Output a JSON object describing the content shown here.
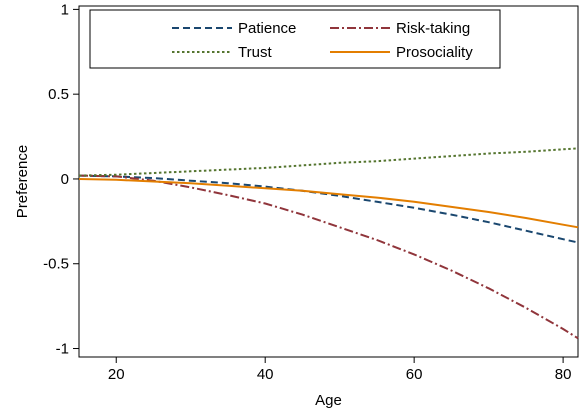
{
  "chart_data": {
    "type": "line",
    "xlabel": "Age",
    "ylabel": "Preference",
    "xlim": [
      15,
      82
    ],
    "ylim": [
      -1.05,
      1.02
    ],
    "xticks": [
      20,
      40,
      60,
      80
    ],
    "yticks": [
      1,
      0.5,
      0,
      -0.5,
      -1
    ],
    "ytick_labels": [
      "1",
      "0.5",
      "0",
      "-0.5",
      "-1"
    ],
    "grid": false,
    "legend": {
      "position": "top",
      "columns": 2
    },
    "x": [
      15,
      20,
      25,
      30,
      35,
      40,
      45,
      50,
      55,
      60,
      65,
      70,
      75,
      80,
      82
    ],
    "series": [
      {
        "name": "Patience",
        "color": "#1a476f",
        "dash": "dashed",
        "values": [
          0.02,
          0.015,
          0.005,
          -0.01,
          -0.025,
          -0.045,
          -0.07,
          -0.1,
          -0.135,
          -0.17,
          -0.21,
          -0.255,
          -0.305,
          -0.355,
          -0.375
        ]
      },
      {
        "name": "Risk-taking",
        "color": "#90353b",
        "dash": "dashdot",
        "values": [
          0.02,
          0.015,
          -0.01,
          -0.05,
          -0.095,
          -0.145,
          -0.21,
          -0.285,
          -0.36,
          -0.445,
          -0.54,
          -0.645,
          -0.76,
          -0.885,
          -0.94
        ]
      },
      {
        "name": "Trust",
        "color": "#55752f",
        "dash": "dotted",
        "values": [
          0.02,
          0.025,
          0.035,
          0.045,
          0.055,
          0.065,
          0.08,
          0.095,
          0.105,
          0.12,
          0.135,
          0.15,
          0.16,
          0.175,
          0.18
        ]
      },
      {
        "name": "Prosociality",
        "color": "#e37e00",
        "dash": "solid",
        "values": [
          0.0,
          -0.005,
          -0.015,
          -0.025,
          -0.04,
          -0.055,
          -0.07,
          -0.09,
          -0.11,
          -0.135,
          -0.165,
          -0.195,
          -0.23,
          -0.27,
          -0.285
        ]
      }
    ]
  }
}
